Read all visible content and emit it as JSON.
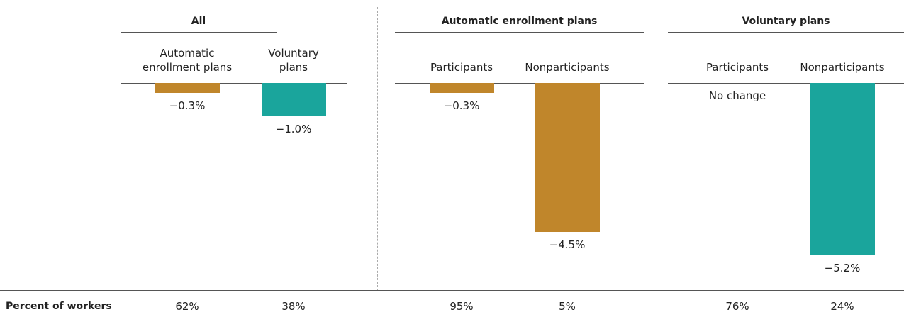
{
  "chart_data": [
    {
      "type": "bar",
      "title": "All",
      "categories": [
        "Automatic\nenrollment plans",
        "Voluntary\nplans"
      ],
      "values": [
        -0.3,
        -1.0
      ],
      "value_labels": [
        "−0.3%",
        "−1.0%"
      ],
      "colors": [
        "#c0862b",
        "#1aa59c"
      ],
      "ylim": [
        -6,
        0
      ],
      "workers": [
        62,
        38
      ],
      "workers_labels": [
        "62%",
        "38%"
      ]
    },
    {
      "type": "bar",
      "title": "Automatic enrollment plans",
      "categories": [
        "Participants",
        "Nonparticipants"
      ],
      "values": [
        -0.3,
        -4.5
      ],
      "value_labels": [
        "−0.3%",
        "−4.5%"
      ],
      "colors": [
        "#c0862b",
        "#c0862b"
      ],
      "ylim": [
        -6,
        0
      ],
      "workers": [
        95,
        5
      ],
      "workers_labels": [
        "95%",
        "5%"
      ]
    },
    {
      "type": "bar",
      "title": "Voluntary plans",
      "categories": [
        "Participants",
        "Nonparticipants"
      ],
      "values": [
        0,
        -5.2
      ],
      "value_labels": [
        "No change",
        "−5.2%"
      ],
      "colors": [
        "#1aa59c",
        "#1aa59c"
      ],
      "ylim": [
        -6,
        0
      ],
      "workers": [
        76,
        24
      ],
      "workers_labels": [
        "76%",
        "24%"
      ]
    }
  ],
  "row_label": "Percent of workers"
}
